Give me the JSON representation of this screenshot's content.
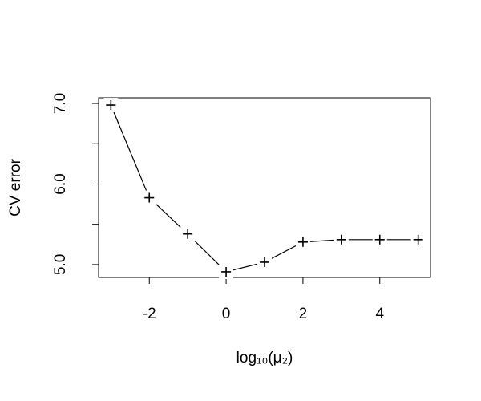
{
  "chart_data": {
    "type": "line",
    "xlabel": "log₁₀(μ₂)",
    "ylabel": "CV error",
    "x": [
      -3,
      -2,
      -1,
      0,
      1,
      2,
      3,
      4,
      5
    ],
    "series": [
      {
        "color": "#000000",
        "marker": "+",
        "values": [
          6.98,
          5.83,
          5.38,
          4.91,
          5.03,
          5.28,
          5.31,
          5.31,
          5.31
        ]
      }
    ],
    "xlim": [
      -3.32,
      5.32
    ],
    "xticks": [
      -2,
      0,
      2,
      4
    ],
    "ylim": [
      4.84,
      7.07
    ],
    "yticks": [
      {
        "value": 5,
        "label": "5.0"
      },
      {
        "value": 6,
        "label": "6.0"
      },
      {
        "value": 7,
        "label": "7.0"
      }
    ],
    "yminor_ticks": [
      5.5,
      6.5
    ],
    "grid": false
  }
}
